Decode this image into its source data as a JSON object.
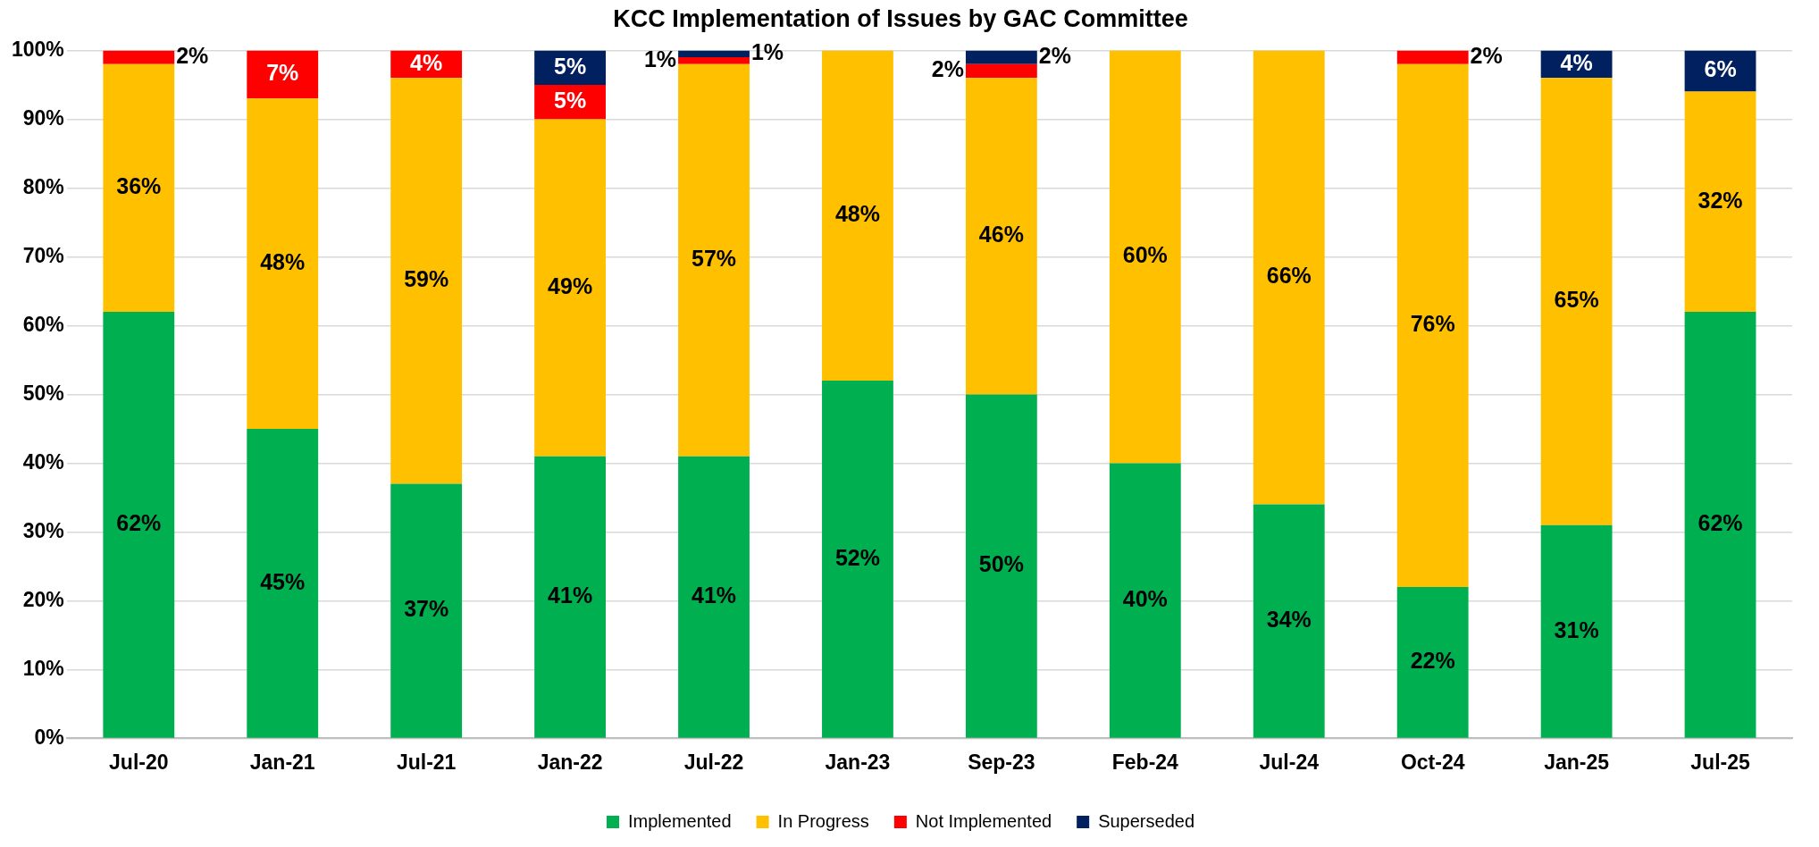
{
  "chart_data": {
    "type": "bar",
    "stacked": true,
    "title": "KCC Implementation of Issues by GAC Committee",
    "categories": [
      "Jul-20",
      "Jan-21",
      "Jul-21",
      "Jan-22",
      "Jul-22",
      "Jan-23",
      "Sep-23",
      "Feb-24",
      "Jul-24",
      "Oct-24",
      "Jan-25",
      "Jul-25"
    ],
    "series": [
      {
        "name": "Implemented",
        "color": "#00b050",
        "values": [
          62,
          45,
          37,
          41,
          41,
          52,
          50,
          40,
          34,
          22,
          31,
          62
        ],
        "value_labels": [
          "62%",
          "45%",
          "37%",
          "41%",
          "41%",
          "52%",
          "50%",
          "40%",
          "34%",
          "22%",
          "31%",
          "62%"
        ]
      },
      {
        "name": "In Progress",
        "color": "#ffc000",
        "values": [
          36,
          48,
          59,
          49,
          57,
          48,
          46,
          60,
          66,
          76,
          65,
          32
        ],
        "value_labels": [
          "36%",
          "48%",
          "59%",
          "49%",
          "57%",
          "48%",
          "46%",
          "60%",
          "66%",
          "76%",
          "65%",
          "32%"
        ]
      },
      {
        "name": "Not Implemented",
        "color": "#ff0000",
        "values": [
          2,
          7,
          4,
          5,
          1,
          0,
          2,
          0,
          0,
          2,
          0,
          0
        ],
        "value_labels": [
          "2%",
          "7%",
          "4%",
          "5%",
          "1%",
          null,
          "2%",
          null,
          null,
          "2%",
          null,
          null
        ]
      },
      {
        "name": "Superseded",
        "color": "#002060",
        "values": [
          0,
          0,
          0,
          5,
          1,
          0,
          2,
          0,
          0,
          0,
          4,
          6
        ],
        "value_labels": [
          null,
          null,
          null,
          "5%",
          "1%",
          null,
          "2%",
          null,
          null,
          null,
          "4%",
          "6%"
        ]
      }
    ],
    "ylim": [
      0,
      100
    ],
    "yticks": [
      {
        "value": 0,
        "label": "0%"
      },
      {
        "value": 10,
        "label": "10%"
      },
      {
        "value": 20,
        "label": "20%"
      },
      {
        "value": 30,
        "label": "30%"
      },
      {
        "value": 40,
        "label": "40%"
      },
      {
        "value": 50,
        "label": "50%"
      },
      {
        "value": 60,
        "label": "60%"
      },
      {
        "value": 70,
        "label": "70%"
      },
      {
        "value": 80,
        "label": "80%"
      },
      {
        "value": 90,
        "label": "90%"
      },
      {
        "value": 100,
        "label": "100%"
      }
    ],
    "grid": "y",
    "legend": "bottom"
  }
}
